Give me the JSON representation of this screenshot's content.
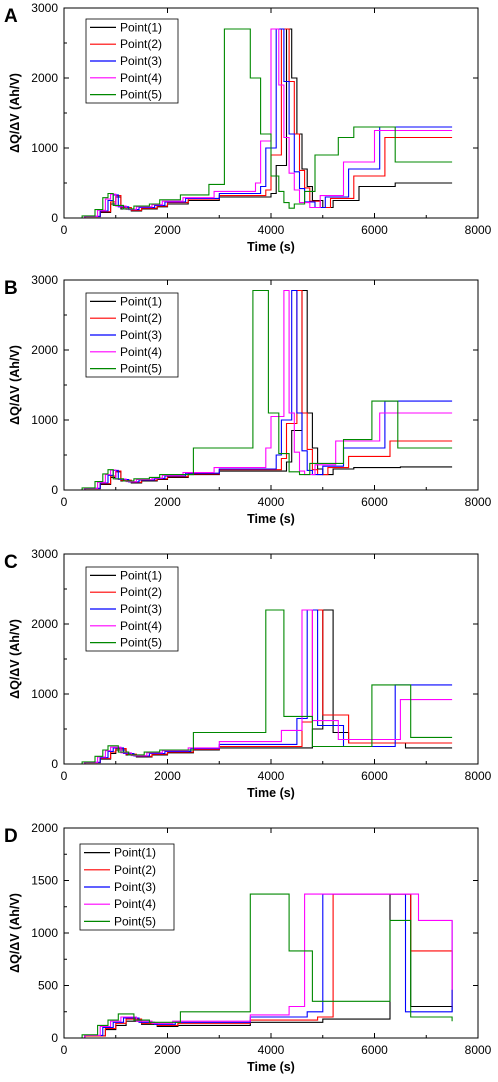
{
  "chart_data": [
    {
      "type": "line",
      "panel": "A",
      "xlabel": "Time (s)",
      "ylabel": "ΔQ/ΔV (Ah/V)",
      "xlim": [
        0,
        8000
      ],
      "ylim": [
        0,
        3000
      ],
      "xticks": [
        0,
        2000,
        4000,
        6000,
        8000
      ],
      "yticks": [
        0,
        1000,
        2000,
        3000
      ],
      "legend": "top-left",
      "series": [
        {
          "name": "Point(1)",
          "color": "#000000",
          "x": [
            0,
            400,
            700,
            900,
            1000,
            1100,
            1300,
            1500,
            1800,
            2000,
            2400,
            3000,
            4000,
            4100,
            4300,
            4400,
            4500,
            4600,
            4700,
            4800,
            5000,
            5200,
            5700,
            6400,
            7500
          ],
          "y": [
            0,
            20,
            80,
            200,
            300,
            130,
            100,
            130,
            160,
            200,
            250,
            300,
            350,
            750,
            2700,
            2000,
            1200,
            700,
            450,
            250,
            150,
            250,
            450,
            500,
            500
          ]
        },
        {
          "name": "Point(2)",
          "color": "#ff0000",
          "x": [
            0,
            400,
            700,
            900,
            1000,
            1100,
            1300,
            1500,
            1800,
            2000,
            2400,
            3000,
            3900,
            4000,
            4200,
            4350,
            4450,
            4550,
            4650,
            4750,
            4950,
            5150,
            5600,
            6200,
            7500
          ],
          "y": [
            0,
            20,
            90,
            230,
            320,
            150,
            110,
            140,
            170,
            220,
            270,
            320,
            400,
            900,
            2700,
            1950,
            1200,
            680,
            430,
            240,
            150,
            280,
            600,
            1150,
            1150
          ]
        },
        {
          "name": "Point(3)",
          "color": "#0000ff",
          "x": [
            0,
            400,
            700,
            850,
            950,
            1050,
            1250,
            1450,
            1750,
            1950,
            2350,
            3000,
            3800,
            3900,
            4100,
            4250,
            4350,
            4450,
            4550,
            4650,
            4850,
            5050,
            5500,
            6100,
            7500
          ],
          "y": [
            0,
            25,
            100,
            250,
            330,
            160,
            120,
            150,
            180,
            230,
            280,
            350,
            450,
            1000,
            2700,
            1950,
            1200,
            660,
            420,
            230,
            150,
            300,
            700,
            1300,
            1300
          ]
        },
        {
          "name": "Point(4)",
          "color": "#ff00ff",
          "x": [
            0,
            400,
            650,
            800,
            900,
            1000,
            1200,
            1400,
            1700,
            1900,
            2300,
            2900,
            3700,
            3800,
            4000,
            4150,
            4250,
            4350,
            4450,
            4550,
            4750,
            4950,
            5400,
            6000,
            7500
          ],
          "y": [
            0,
            25,
            110,
            270,
            340,
            170,
            125,
            160,
            190,
            240,
            290,
            380,
            500,
            1100,
            2700,
            1900,
            1150,
            640,
            400,
            220,
            150,
            320,
            800,
            1250,
            1250
          ]
        },
        {
          "name": "Point(5)",
          "color": "#008800",
          "x": [
            0,
            350,
            600,
            750,
            850,
            950,
            1150,
            1350,
            1650,
            1850,
            2250,
            2800,
            3100,
            3600,
            3800,
            4000,
            4150,
            4250,
            4350,
            4450,
            4650,
            4850,
            5300,
            5600,
            6000,
            6400,
            7500
          ],
          "y": [
            0,
            30,
            120,
            290,
            350,
            180,
            130,
            170,
            200,
            260,
            330,
            480,
            2700,
            2000,
            1200,
            600,
            380,
            220,
            140,
            200,
            380,
            900,
            1150,
            1300,
            1300,
            800,
            800
          ]
        }
      ]
    },
    {
      "type": "line",
      "panel": "B",
      "xlabel": "Time (s)",
      "ylabel": "ΔQ/ΔV (Ah/V)",
      "xlim": [
        0,
        8000
      ],
      "ylim": [
        0,
        3000
      ],
      "xticks": [
        0,
        2000,
        4000,
        6000,
        8000
      ],
      "yticks": [
        0,
        1000,
        2000,
        3000
      ],
      "legend": "top-left",
      "series": [
        {
          "name": "Point(1)",
          "color": "#000000",
          "x": [
            0,
            400,
            700,
            900,
            1000,
            1100,
            1300,
            1500,
            1800,
            2000,
            2400,
            3000,
            4300,
            4400,
            4600,
            4700,
            4800,
            4900,
            5000,
            5200,
            5600,
            6500,
            7500
          ],
          "y": [
            0,
            20,
            80,
            180,
            260,
            130,
            100,
            130,
            150,
            180,
            220,
            270,
            400,
            850,
            2850,
            1100,
            600,
            300,
            220,
            300,
            320,
            330,
            330
          ]
        },
        {
          "name": "Point(2)",
          "color": "#ff0000",
          "x": [
            0,
            400,
            700,
            900,
            1000,
            1100,
            1300,
            1500,
            1800,
            2000,
            2400,
            3000,
            4200,
            4300,
            4500,
            4600,
            4700,
            4800,
            4900,
            5100,
            5500,
            6300,
            7500
          ],
          "y": [
            0,
            20,
            90,
            200,
            270,
            140,
            110,
            140,
            160,
            190,
            230,
            290,
            450,
            950,
            2850,
            1100,
            580,
            290,
            220,
            320,
            480,
            700,
            700
          ]
        },
        {
          "name": "Point(3)",
          "color": "#0000ff",
          "x": [
            0,
            400,
            700,
            850,
            950,
            1050,
            1250,
            1450,
            1750,
            1950,
            2350,
            3000,
            4100,
            4200,
            4400,
            4500,
            4600,
            4700,
            4800,
            5000,
            5400,
            6200,
            7500
          ],
          "y": [
            0,
            25,
            100,
            210,
            280,
            150,
            115,
            145,
            165,
            200,
            240,
            300,
            500,
            1000,
            2850,
            1100,
            560,
            280,
            220,
            340,
            600,
            1270,
            1270
          ]
        },
        {
          "name": "Point(4)",
          "color": "#ff00ff",
          "x": [
            0,
            400,
            650,
            800,
            900,
            1000,
            1200,
            1400,
            1700,
            1900,
            2300,
            2900,
            3900,
            4000,
            4250,
            4350,
            4450,
            4550,
            4650,
            4850,
            5250,
            6100,
            7500
          ],
          "y": [
            0,
            25,
            110,
            220,
            285,
            155,
            120,
            150,
            170,
            210,
            250,
            320,
            600,
            1050,
            2850,
            1100,
            540,
            270,
            220,
            360,
            700,
            1100,
            1100
          ]
        },
        {
          "name": "Point(5)",
          "color": "#008800",
          "x": [
            0,
            350,
            600,
            750,
            850,
            950,
            1150,
            1350,
            1650,
            1850,
            2500,
            3650,
            3950,
            4150,
            4350,
            4550,
            4750,
            5400,
            5950,
            6450,
            7500
          ],
          "y": [
            0,
            30,
            120,
            230,
            290,
            160,
            130,
            160,
            180,
            220,
            600,
            2850,
            1100,
            520,
            260,
            220,
            380,
            720,
            1270,
            600,
            600
          ]
        }
      ]
    },
    {
      "type": "line",
      "panel": "C",
      "xlabel": "Time (s)",
      "ylabel": "ΔQ/ΔV (Ah/V)",
      "xlim": [
        0,
        8000
      ],
      "ylim": [
        0,
        3000
      ],
      "xticks": [
        0,
        2000,
        4000,
        6000,
        8000
      ],
      "yticks": [
        0,
        1000,
        2000,
        3000
      ],
      "legend": "top-left",
      "series": [
        {
          "name": "Point(1)",
          "color": "#000000",
          "x": [
            0,
            400,
            700,
            900,
            1000,
            1200,
            1400,
            1700,
            2000,
            2500,
            3000,
            4800,
            5000,
            5200,
            5500,
            6600,
            7500
          ],
          "y": [
            0,
            20,
            70,
            150,
            200,
            130,
            100,
            130,
            160,
            200,
            230,
            500,
            2200,
            450,
            300,
            230,
            230
          ]
        },
        {
          "name": "Point(2)",
          "color": "#ff0000",
          "x": [
            0,
            400,
            700,
            900,
            1000,
            1200,
            1400,
            1700,
            2000,
            2500,
            3000,
            4600,
            4800,
            5000,
            5500,
            6500,
            7500
          ],
          "y": [
            0,
            20,
            80,
            170,
            220,
            140,
            110,
            140,
            170,
            210,
            250,
            600,
            2200,
            700,
            300,
            300,
            300
          ]
        },
        {
          "name": "Point(3)",
          "color": "#0000ff",
          "x": [
            0,
            400,
            700,
            850,
            950,
            1150,
            1350,
            1650,
            1950,
            2450,
            3000,
            4500,
            4700,
            4900,
            5400,
            6400,
            7500
          ],
          "y": [
            0,
            25,
            90,
            180,
            230,
            150,
            115,
            150,
            180,
            220,
            280,
            650,
            2200,
            550,
            250,
            1130,
            1130
          ]
        },
        {
          "name": "Point(4)",
          "color": "#ff00ff",
          "x": [
            0,
            400,
            650,
            800,
            900,
            1100,
            1300,
            1600,
            1900,
            2400,
            3000,
            4200,
            4600,
            4800,
            5300,
            6500,
            7500
          ],
          "y": [
            0,
            25,
            100,
            190,
            240,
            160,
            120,
            160,
            190,
            230,
            320,
            480,
            2200,
            620,
            350,
            920,
            920
          ]
        },
        {
          "name": "Point(5)",
          "color": "#008800",
          "x": [
            0,
            350,
            600,
            750,
            850,
            1050,
            1250,
            1550,
            1850,
            2500,
            3900,
            4250,
            4800,
            5950,
            6700,
            7500
          ],
          "y": [
            0,
            30,
            110,
            200,
            260,
            170,
            130,
            170,
            200,
            450,
            2200,
            680,
            250,
            1130,
            380,
            380
          ]
        }
      ]
    },
    {
      "type": "line",
      "panel": "D",
      "xlabel": "Time (s)",
      "ylabel": "ΔQ/ΔV (Ah/V)",
      "xlim": [
        0,
        8000
      ],
      "ylim": [
        0,
        2000
      ],
      "xticks": [
        0,
        2000,
        4000,
        6000,
        8000
      ],
      "yticks": [
        0,
        500,
        1000,
        1500,
        2000
      ],
      "legend": "top-left",
      "series": [
        {
          "name": "Point(1)",
          "color": "#000000",
          "x": [
            0,
            400,
            800,
            1000,
            1200,
            1500,
            1800,
            2200,
            3600,
            5000,
            6300,
            6700,
            7500
          ],
          "y": [
            0,
            20,
            80,
            120,
            160,
            130,
            110,
            120,
            150,
            180,
            1370,
            300,
            250
          ]
        },
        {
          "name": "Point(2)",
          "color": "#ff0000",
          "x": [
            0,
            400,
            800,
            1000,
            1200,
            1500,
            1800,
            2200,
            3600,
            4900,
            5200,
            6700,
            7500
          ],
          "y": [
            0,
            20,
            90,
            140,
            180,
            140,
            120,
            140,
            170,
            200,
            1370,
            830,
            290
          ]
        },
        {
          "name": "Point(3)",
          "color": "#0000ff",
          "x": [
            0,
            400,
            750,
            950,
            1150,
            1450,
            1750,
            2150,
            3600,
            4700,
            5000,
            6600,
            7500
          ],
          "y": [
            0,
            25,
            100,
            150,
            190,
            150,
            130,
            150,
            200,
            250,
            1370,
            250,
            1120
          ]
        },
        {
          "name": "Point(4)",
          "color": "#ff00ff",
          "x": [
            0,
            400,
            700,
            900,
            1100,
            1400,
            1700,
            2100,
            3600,
            4350,
            4650,
            6850,
            7500
          ],
          "y": [
            0,
            25,
            110,
            160,
            200,
            160,
            140,
            160,
            220,
            300,
            1370,
            1120,
            460
          ]
        },
        {
          "name": "Point(5)",
          "color": "#008800",
          "x": [
            0,
            350,
            650,
            850,
            1050,
            1350,
            1650,
            2250,
            3600,
            4350,
            4800,
            6300,
            6700,
            7500
          ],
          "y": [
            0,
            30,
            120,
            170,
            230,
            170,
            150,
            250,
            1370,
            830,
            350,
            1120,
            200,
            160
          ]
        }
      ]
    }
  ]
}
